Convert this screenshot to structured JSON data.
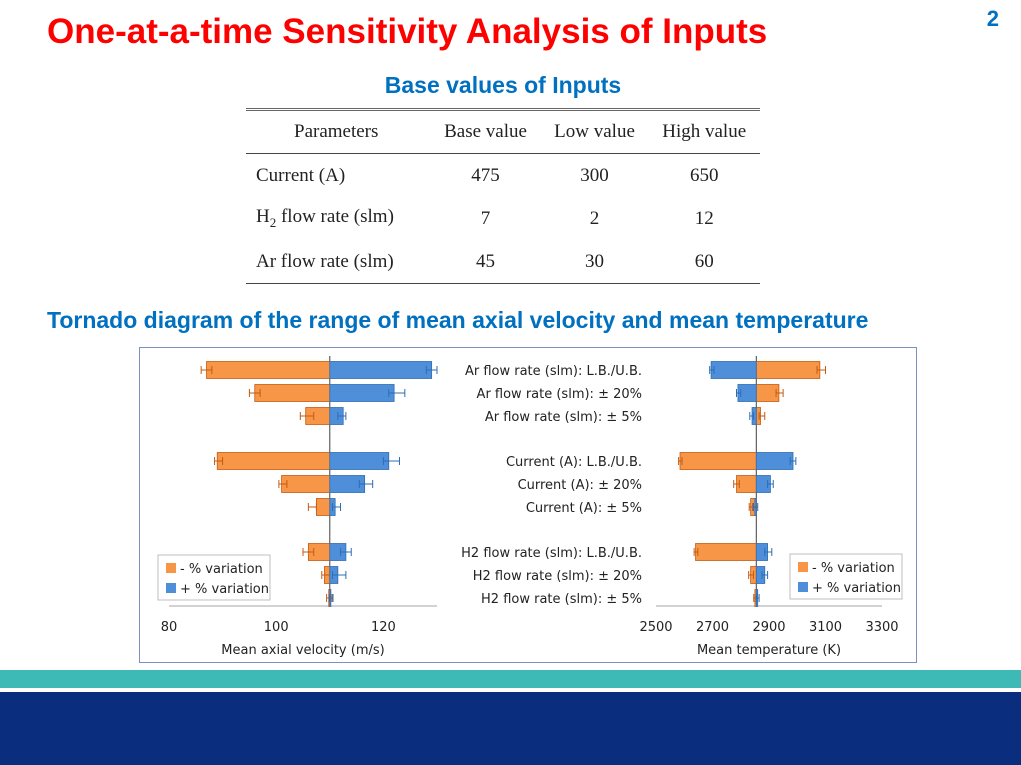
{
  "slide": {
    "title": "One-at-a-time Sensitivity Analysis of Inputs",
    "page_number": "2",
    "table_title": "Base values of Inputs",
    "chart_title": "Tornado diagram of the range of mean axial velocity and mean temperature"
  },
  "table": {
    "headers": [
      "Parameters",
      "Base value",
      "Low value",
      "High value"
    ],
    "rows": [
      {
        "param_main": "Current (A)",
        "param_sub": "",
        "param_rest": "",
        "base": "475",
        "low": "300",
        "high": "650"
      },
      {
        "param_main": "H",
        "param_sub": "2",
        "param_rest": " flow rate (slm)",
        "base": "7",
        "low": "2",
        "high": "12"
      },
      {
        "param_main": "Ar flow rate (slm)",
        "param_sub": "",
        "param_rest": "",
        "base": "45",
        "low": "30",
        "high": "60"
      }
    ]
  },
  "colors": {
    "minus": "#f79646",
    "plus": "#4f8fd9",
    "title": "#ff0000",
    "heading": "#0070c0",
    "band_teal": "#3dbab6",
    "band_navy": "#0b2d7e"
  },
  "chart_data": [
    {
      "type": "bar",
      "orientation": "horizontal",
      "title": "",
      "xlabel": "Mean axial velocity (m/s)",
      "xlim": [
        80,
        130
      ],
      "xticks": [
        80,
        100,
        120
      ],
      "base": 110,
      "legend": "bottom-left",
      "categories": [
        "Ar flow rate (slm): L.B./U.B.",
        "Ar flow rate (slm): ± 20%",
        "Ar flow rate (slm): ± 5%",
        "Current (A): L.B./U.B.",
        "Current (A): ± 20%",
        "Current (A): ± 5%",
        "H2 flow rate (slm): L.B./U.B.",
        "H2 flow rate (slm): ± 20%",
        "H2 flow rate (slm): ± 5%"
      ],
      "series": [
        {
          "name": "- % variation",
          "values": [
            87,
            96,
            105.5,
            89,
            101,
            107.5,
            106,
            109,
            109.8
          ],
          "error": [
            [
              86,
              88
            ],
            [
              95,
              97
            ],
            [
              104.5,
              107
            ],
            [
              88.5,
              90
            ],
            [
              100.5,
              102
            ],
            [
              106,
              107.5
            ],
            [
              105,
              107
            ],
            [
              108.5,
              110
            ],
            [
              109.4,
              110.4
            ]
          ]
        },
        {
          "name": "+ % variation",
          "values": [
            129,
            122,
            112.5,
            121,
            116.5,
            111,
            113,
            111.5,
            110.2
          ],
          "error": [
            [
              128,
              130
            ],
            [
              121,
              124
            ],
            [
              111.5,
              113
            ],
            [
              120,
              123
            ],
            [
              115.5,
              118
            ],
            [
              110.5,
              112
            ],
            [
              112,
              114
            ],
            [
              110.5,
              113
            ],
            [
              109.9,
              110.6
            ]
          ]
        }
      ]
    },
    {
      "type": "bar",
      "orientation": "horizontal",
      "title": "",
      "xlabel": "Mean temperature (K)",
      "xlim": [
        2500,
        3300
      ],
      "xticks": [
        2500,
        2700,
        2900,
        3100,
        3300
      ],
      "base": 2855,
      "legend": "bottom-right",
      "categories": [
        "Ar flow rate (slm): L.B./U.B.",
        "Ar flow rate (slm): ± 20%",
        "Ar flow rate (slm): ± 5%",
        "Current (A): L.B./U.B.",
        "Current (A): ± 20%",
        "Current (A): ± 5%",
        "H2 flow rate (slm): L.B./U.B.",
        "H2 flow rate (slm): ± 20%",
        "H2 flow rate (slm): ± 5%"
      ],
      "series": [
        {
          "name": "- % variation",
          "values": [
            3080,
            2935,
            2870,
            2585,
            2785,
            2835,
            2640,
            2835,
            2850
          ],
          "error": [
            [
              3070,
              3100
            ],
            [
              2925,
              2950
            ],
            [
              2865,
              2885
            ],
            [
              2580,
              2592
            ],
            [
              2775,
              2795
            ],
            [
              2830,
              2842
            ],
            [
              2635,
              2648
            ],
            [
              2828,
              2845
            ],
            [
              2846,
              2855
            ]
          ]
        },
        {
          "name": "+ % variation",
          "values": [
            2695,
            2790,
            2840,
            2985,
            2905,
            2850,
            2895,
            2885,
            2860
          ],
          "error": [
            [
              2690,
              2705
            ],
            [
              2785,
              2800
            ],
            [
              2832,
              2845
            ],
            [
              2975,
              2995
            ],
            [
              2895,
              2915
            ],
            [
              2845,
              2860
            ],
            [
              2885,
              2910
            ],
            [
              2875,
              2895
            ],
            [
              2855,
              2865
            ]
          ]
        }
      ]
    }
  ]
}
